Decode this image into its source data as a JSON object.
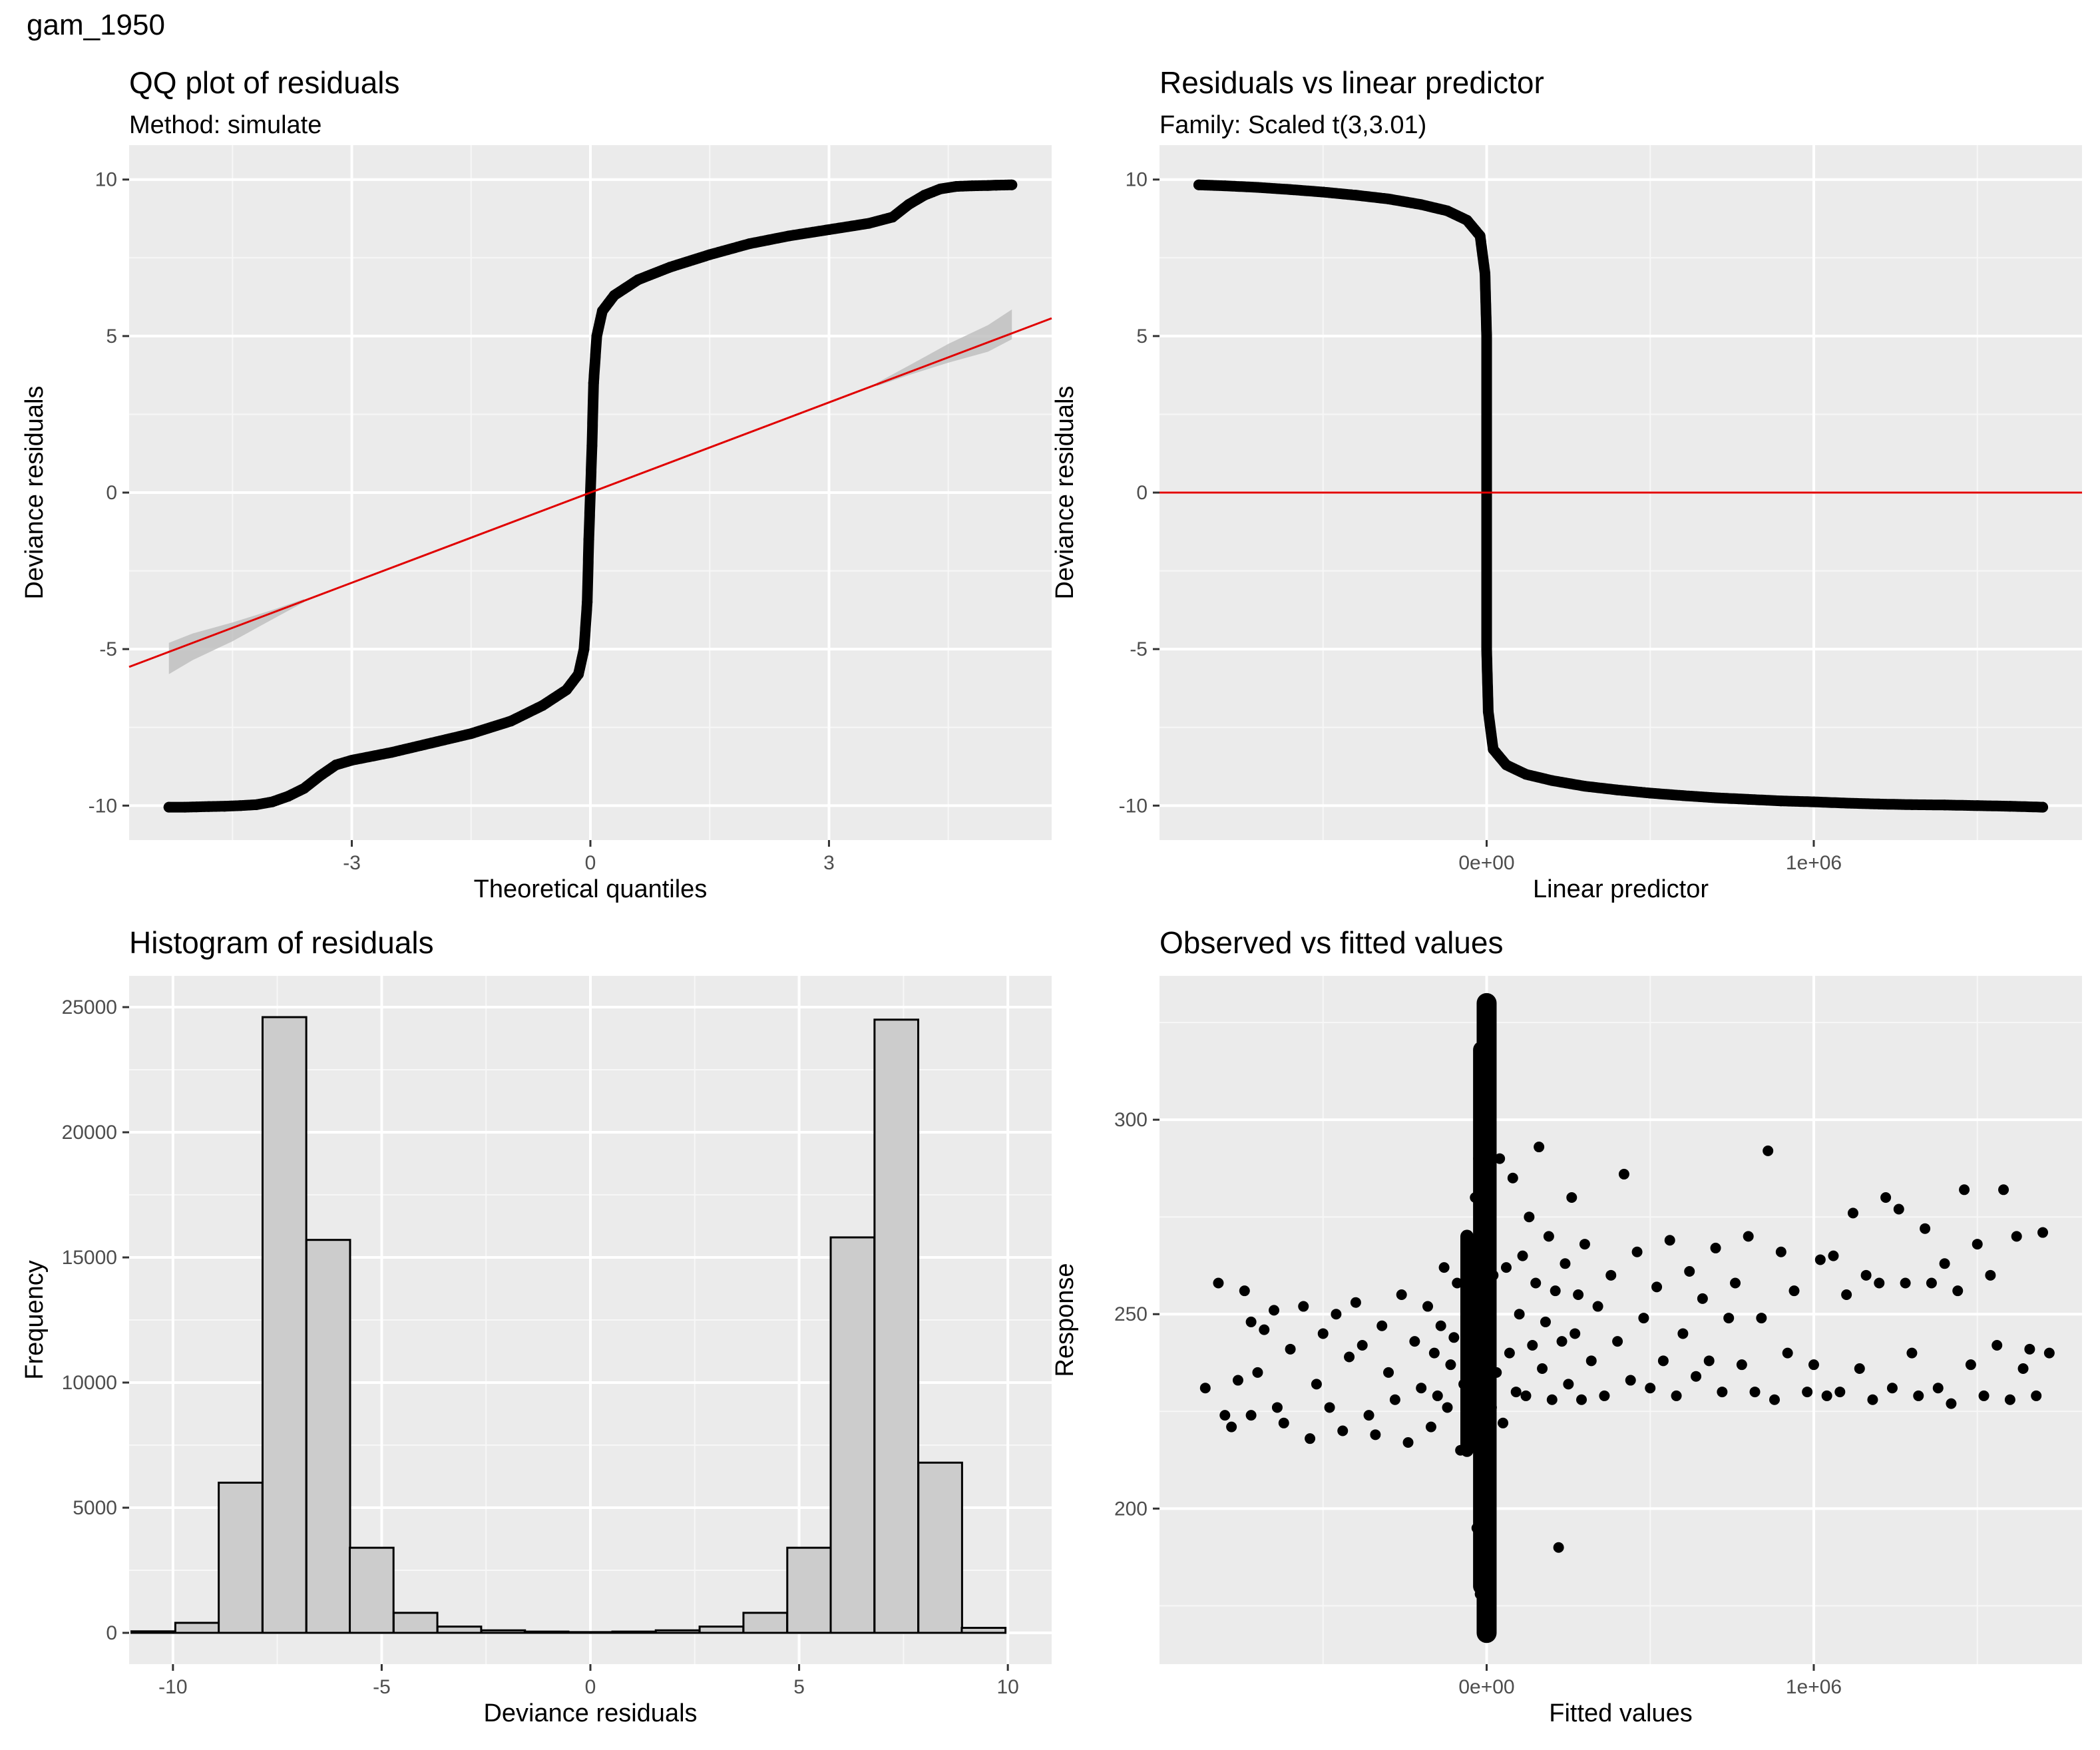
{
  "figure_title": "gam_1950",
  "chart_data": [
    {
      "type": "scatter",
      "title": "QQ plot of residuals",
      "subtitle": "Method: simulate",
      "xlabel": "Theoretical quantiles",
      "ylabel": "Deviance residuals",
      "xlim": [
        -5.8,
        5.8
      ],
      "ylim": [
        -11.1,
        11.1
      ],
      "xticks": [
        -3,
        0,
        3
      ],
      "xtick_labels": [
        "-3",
        "0",
        "3"
      ],
      "yticks": [
        -10,
        -5,
        0,
        5,
        10
      ],
      "ytick_labels": [
        "-10",
        "-5",
        "0",
        "5",
        "10"
      ],
      "grid": true,
      "points": [
        [
          -5.3,
          -10.05
        ],
        [
          -5.1,
          -10.05
        ],
        [
          -4.95,
          -10.04
        ],
        [
          -4.8,
          -10.03
        ],
        [
          -4.6,
          -10.02
        ],
        [
          -4.4,
          -10.0
        ],
        [
          -4.2,
          -9.97
        ],
        [
          -4.0,
          -9.88
        ],
        [
          -3.8,
          -9.7
        ],
        [
          -3.6,
          -9.45
        ],
        [
          -3.4,
          -9.05
        ],
        [
          -3.2,
          -8.7
        ],
        [
          -3.0,
          -8.55
        ],
        [
          -2.5,
          -8.3
        ],
        [
          -2.0,
          -8.0
        ],
        [
          -1.5,
          -7.7
        ],
        [
          -1.0,
          -7.3
        ],
        [
          -0.6,
          -6.8
        ],
        [
          -0.3,
          -6.3
        ],
        [
          -0.15,
          -5.8
        ],
        [
          -0.08,
          -5.0
        ],
        [
          -0.04,
          -3.5
        ],
        [
          -0.02,
          -1.5
        ],
        [
          0.0,
          0.0
        ],
        [
          0.02,
          1.5
        ],
        [
          0.04,
          3.5
        ],
        [
          0.08,
          5.0
        ],
        [
          0.15,
          5.8
        ],
        [
          0.3,
          6.3
        ],
        [
          0.6,
          6.8
        ],
        [
          1.0,
          7.2
        ],
        [
          1.5,
          7.6
        ],
        [
          2.0,
          7.95
        ],
        [
          2.5,
          8.2
        ],
        [
          3.0,
          8.4
        ],
        [
          3.5,
          8.6
        ],
        [
          3.8,
          8.8
        ],
        [
          4.0,
          9.2
        ],
        [
          4.2,
          9.5
        ],
        [
          4.4,
          9.7
        ],
        [
          4.6,
          9.78
        ],
        [
          4.8,
          9.8
        ],
        [
          5.0,
          9.81
        ],
        [
          5.1,
          9.82
        ],
        [
          5.3,
          9.83
        ]
      ],
      "reference_line": {
        "slope": 0.96,
        "intercept": 0.0,
        "color": "#e00000"
      },
      "band_lower": [
        [
          -5.3,
          -5.8
        ],
        [
          -5.0,
          -5.35
        ],
        [
          -4.5,
          -4.75
        ],
        [
          -4.0,
          -4.05
        ],
        [
          -3.6,
          -3.5
        ]
      ],
      "band_upper": [
        [
          -5.3,
          -4.8
        ],
        [
          -5.0,
          -4.5
        ],
        [
          -4.5,
          -4.15
        ],
        [
          -4.0,
          -3.75
        ],
        [
          -3.6,
          -3.4
        ]
      ],
      "band_lower_r": [
        [
          3.6,
          3.4
        ],
        [
          4.0,
          3.75
        ],
        [
          4.5,
          4.15
        ],
        [
          5.0,
          4.5
        ],
        [
          5.3,
          4.9
        ]
      ],
      "band_upper_r": [
        [
          3.6,
          3.5
        ],
        [
          4.0,
          4.05
        ],
        [
          4.5,
          4.75
        ],
        [
          5.0,
          5.35
        ],
        [
          5.3,
          5.85
        ]
      ]
    },
    {
      "type": "scatter",
      "title": "Residuals vs linear predictor",
      "subtitle": "Family: Scaled t(3,3.01)",
      "xlabel": "Linear predictor",
      "ylabel": "Deviance residuals",
      "xlim": [
        -1000000,
        1820000
      ],
      "ylim": [
        -11.1,
        11.1
      ],
      "xticks": [
        0,
        1000000
      ],
      "xtick_labels": [
        "0e+00",
        "1e+06"
      ],
      "yticks": [
        -10,
        -5,
        0,
        5,
        10
      ],
      "ytick_labels": [
        "-10",
        "-5",
        "0",
        "5",
        "10"
      ],
      "grid": true,
      "points": [
        [
          -880000,
          9.83
        ],
        [
          -800000,
          9.8
        ],
        [
          -700000,
          9.75
        ],
        [
          -600000,
          9.68
        ],
        [
          -500000,
          9.6
        ],
        [
          -400000,
          9.5
        ],
        [
          -300000,
          9.38
        ],
        [
          -200000,
          9.2
        ],
        [
          -120000,
          9.0
        ],
        [
          -60000,
          8.7
        ],
        [
          -20000,
          8.2
        ],
        [
          -5000,
          7.0
        ],
        [
          0,
          5.0
        ],
        [
          0,
          0.0
        ],
        [
          0,
          -5.0
        ],
        [
          5000,
          -7.0
        ],
        [
          20000,
          -8.2
        ],
        [
          60000,
          -8.7
        ],
        [
          120000,
          -9.0
        ],
        [
          200000,
          -9.2
        ],
        [
          300000,
          -9.38
        ],
        [
          400000,
          -9.5
        ],
        [
          500000,
          -9.6
        ],
        [
          600000,
          -9.68
        ],
        [
          700000,
          -9.75
        ],
        [
          800000,
          -9.8
        ],
        [
          900000,
          -9.85
        ],
        [
          1000000,
          -9.88
        ],
        [
          1100000,
          -9.92
        ],
        [
          1200000,
          -9.95
        ],
        [
          1300000,
          -9.97
        ],
        [
          1400000,
          -9.98
        ],
        [
          1500000,
          -10.0
        ],
        [
          1600000,
          -10.02
        ],
        [
          1700000,
          -10.05
        ]
      ],
      "reference_line": {
        "y": 0,
        "color": "#e00000"
      }
    },
    {
      "type": "bar",
      "title": "Histogram of residuals",
      "xlabel": "Deviance residuals",
      "ylabel": "Frequency",
      "xlim": [
        -11.05,
        11.05
      ],
      "ylim": [
        -1250,
        26250
      ],
      "xticks": [
        -10,
        -5,
        0,
        5,
        10
      ],
      "xtick_labels": [
        "-10",
        "-5",
        "0",
        "5",
        "10"
      ],
      "yticks": [
        0,
        5000,
        10000,
        15000,
        20000,
        25000
      ],
      "ytick_labels": [
        "0",
        "5000",
        "10000",
        "15000",
        "20000",
        "25000"
      ],
      "grid": true,
      "bin_width": 1.047,
      "bin_centers": [
        -10.47,
        -9.42,
        -8.38,
        -7.33,
        -6.28,
        -5.24,
        -4.19,
        -3.14,
        -2.09,
        -1.05,
        0.0,
        1.05,
        2.09,
        3.14,
        4.19,
        5.24,
        6.28,
        7.33,
        8.38,
        9.42
      ],
      "values": [
        60,
        400,
        6000,
        24600,
        15700,
        3400,
        800,
        250,
        100,
        50,
        30,
        50,
        100,
        250,
        800,
        3400,
        15800,
        24500,
        6800,
        200
      ]
    },
    {
      "type": "scatter",
      "title": "Observed vs fitted values",
      "xlabel": "Fitted values",
      "ylabel": "Response",
      "xlim": [
        -1000000,
        1820000
      ],
      "ylim": [
        160,
        337
      ],
      "xticks": [
        0,
        1000000
      ],
      "xtick_labels": [
        "0e+00",
        "1e+06"
      ],
      "yticks": [
        200,
        250,
        300
      ],
      "ytick_labels": [
        "200",
        "250",
        "300"
      ],
      "grid": true,
      "points": [
        [
          -860000,
          231
        ],
        [
          -820000,
          258
        ],
        [
          -800000,
          224
        ],
        [
          -780000,
          221
        ],
        [
          -760000,
          233
        ],
        [
          -740000,
          256
        ],
        [
          -720000,
          248
        ],
        [
          -720000,
          224
        ],
        [
          -700000,
          235
        ],
        [
          -680000,
          246
        ],
        [
          -650000,
          251
        ],
        [
          -640000,
          226
        ],
        [
          -620000,
          222
        ],
        [
          -600000,
          241
        ],
        [
          -560000,
          252
        ],
        [
          -540000,
          218
        ],
        [
          -520000,
          232
        ],
        [
          -500000,
          245
        ],
        [
          -480000,
          226
        ],
        [
          -460000,
          250
        ],
        [
          -440000,
          220
        ],
        [
          -420000,
          239
        ],
        [
          -400000,
          253
        ],
        [
          -380000,
          242
        ],
        [
          -360000,
          224
        ],
        [
          -340000,
          219
        ],
        [
          -320000,
          247
        ],
        [
          -300000,
          235
        ],
        [
          -280000,
          228
        ],
        [
          -260000,
          255
        ],
        [
          -240000,
          217
        ],
        [
          -220000,
          243
        ],
        [
          -200000,
          231
        ],
        [
          -180000,
          252
        ],
        [
          -170000,
          221
        ],
        [
          -160000,
          240
        ],
        [
          -150000,
          229
        ],
        [
          -140000,
          247
        ],
        [
          -130000,
          262
        ],
        [
          -120000,
          226
        ],
        [
          -110000,
          237
        ],
        [
          -100000,
          244
        ],
        [
          -90000,
          258
        ],
        [
          -80000,
          215
        ],
        [
          -70000,
          232
        ],
        [
          -60000,
          249
        ],
        [
          -55000,
          223
        ],
        [
          -50000,
          265
        ],
        [
          -45000,
          238
        ],
        [
          -40000,
          255
        ],
        [
          -35000,
          280
        ],
        [
          -30000,
          195
        ],
        [
          -25000,
          290
        ],
        [
          -20000,
          178
        ],
        [
          -15000,
          305
        ],
        [
          -10000,
          185
        ],
        [
          -8000,
          320
        ],
        [
          -5000,
          172
        ],
        [
          -3000,
          300
        ],
        [
          -2000,
          200
        ],
        [
          0,
          250
        ],
        [
          0,
          330
        ],
        [
          0,
          168
        ],
        [
          3000,
          310
        ],
        [
          6000,
          190
        ],
        [
          10000,
          275
        ],
        [
          15000,
          226
        ],
        [
          20000,
          260
        ],
        [
          30000,
          235
        ],
        [
          40000,
          290
        ],
        [
          50000,
          222
        ],
        [
          60000,
          262
        ],
        [
          70000,
          240
        ],
        [
          80000,
          285
        ],
        [
          90000,
          230
        ],
        [
          100000,
          250
        ],
        [
          110000,
          265
        ],
        [
          120000,
          229
        ],
        [
          130000,
          275
        ],
        [
          140000,
          242
        ],
        [
          150000,
          258
        ],
        [
          160000,
          293
        ],
        [
          170000,
          236
        ],
        [
          180000,
          248
        ],
        [
          190000,
          270
        ],
        [
          200000,
          228
        ],
        [
          210000,
          256
        ],
        [
          220000,
          190
        ],
        [
          230000,
          243
        ],
        [
          240000,
          263
        ],
        [
          250000,
          232
        ],
        [
          260000,
          280
        ],
        [
          270000,
          245
        ],
        [
          280000,
          255
        ],
        [
          290000,
          228
        ],
        [
          300000,
          268
        ],
        [
          320000,
          238
        ],
        [
          340000,
          252
        ],
        [
          360000,
          229
        ],
        [
          380000,
          260
        ],
        [
          400000,
          243
        ],
        [
          420000,
          286
        ],
        [
          440000,
          233
        ],
        [
          460000,
          266
        ],
        [
          480000,
          249
        ],
        [
          500000,
          231
        ],
        [
          520000,
          257
        ],
        [
          540000,
          238
        ],
        [
          560000,
          269
        ],
        [
          580000,
          229
        ],
        [
          600000,
          245
        ],
        [
          620000,
          261
        ],
        [
          640000,
          234
        ],
        [
          660000,
          254
        ],
        [
          680000,
          238
        ],
        [
          700000,
          267
        ],
        [
          720000,
          230
        ],
        [
          740000,
          249
        ],
        [
          760000,
          258
        ],
        [
          780000,
          237
        ],
        [
          800000,
          270
        ],
        [
          820000,
          230
        ],
        [
          840000,
          249
        ],
        [
          860000,
          292
        ],
        [
          880000,
          228
        ],
        [
          900000,
          266
        ],
        [
          920000,
          240
        ],
        [
          940000,
          256
        ],
        [
          980000,
          230
        ],
        [
          1000000,
          237
        ],
        [
          1020000,
          264
        ],
        [
          1040000,
          229
        ],
        [
          1060000,
          265
        ],
        [
          1080000,
          230
        ],
        [
          1100000,
          255
        ],
        [
          1120000,
          276
        ],
        [
          1140000,
          236
        ],
        [
          1160000,
          260
        ],
        [
          1180000,
          228
        ],
        [
          1200000,
          258
        ],
        [
          1220000,
          280
        ],
        [
          1240000,
          231
        ],
        [
          1260000,
          277
        ],
        [
          1280000,
          258
        ],
        [
          1300000,
          240
        ],
        [
          1320000,
          229
        ],
        [
          1340000,
          272
        ],
        [
          1360000,
          258
        ],
        [
          1380000,
          231
        ],
        [
          1400000,
          263
        ],
        [
          1420000,
          227
        ],
        [
          1440000,
          256
        ],
        [
          1460000,
          282
        ],
        [
          1480000,
          237
        ],
        [
          1500000,
          268
        ],
        [
          1520000,
          229
        ],
        [
          1540000,
          260
        ],
        [
          1560000,
          242
        ],
        [
          1580000,
          282
        ],
        [
          1600000,
          228
        ],
        [
          1620000,
          270
        ],
        [
          1640000,
          236
        ],
        [
          1660000,
          241
        ],
        [
          1680000,
          229
        ],
        [
          1700000,
          271
        ],
        [
          1720000,
          240
        ]
      ]
    }
  ]
}
